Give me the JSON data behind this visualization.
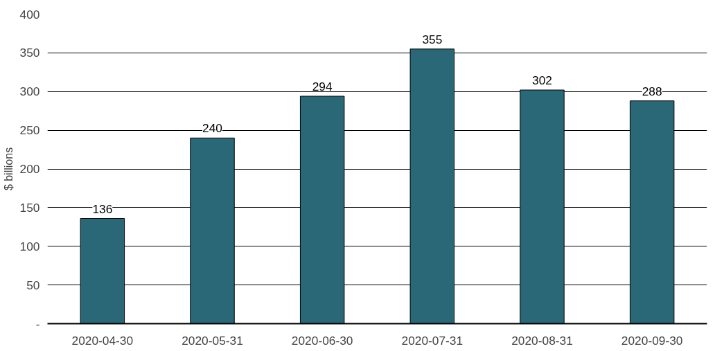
{
  "chart_data": {
    "type": "bar",
    "ylabel": "$ billions",
    "categories": [
      "2020-04-30",
      "2020-05-31",
      "2020-06-30",
      "2020-07-31",
      "2020-08-31",
      "2020-09-30"
    ],
    "values": [
      136,
      240,
      294,
      355,
      302,
      288
    ],
    "color": "#2a6878",
    "ylim": [
      0,
      400
    ],
    "yticks": [
      {
        "value": 0,
        "label": "-"
      },
      50,
      100,
      150,
      200,
      250,
      300,
      350,
      400
    ],
    "grid": "y",
    "data_labels": true
  }
}
